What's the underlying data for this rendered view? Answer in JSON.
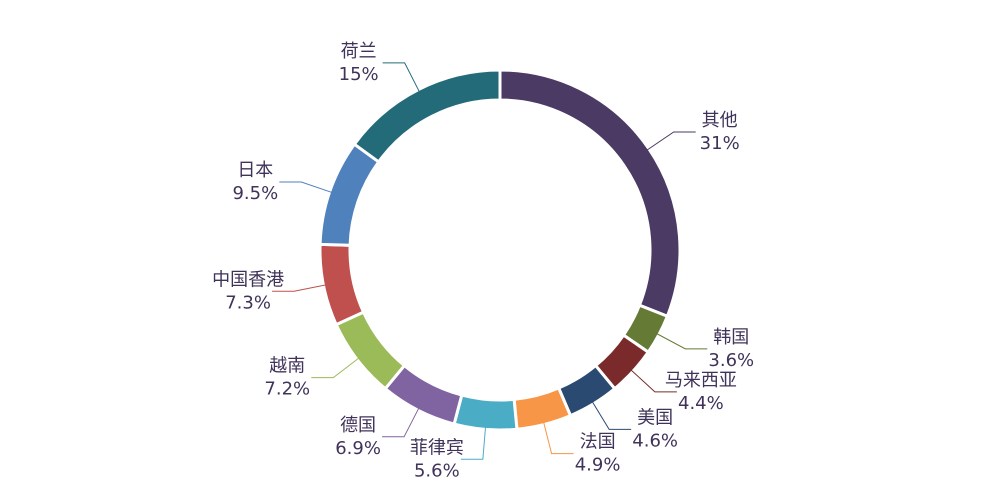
{
  "chart_data": {
    "type": "donut",
    "categories": [
      "其他",
      "韩国",
      "马来西亚",
      "美国",
      "法国",
      "菲律宾",
      "德国",
      "越南",
      "中国香港",
      "日本",
      "荷兰"
    ],
    "values": [
      31,
      3.6,
      4.4,
      4.6,
      4.9,
      5.6,
      6.9,
      7.2,
      7.3,
      9.5,
      15
    ],
    "value_labels": [
      "31%",
      "3.6%",
      "4.4%",
      "4.6%",
      "4.9%",
      "5.6%",
      "6.9%",
      "7.2%",
      "7.3%",
      "9.5%",
      "15%"
    ],
    "colors": [
      "#4b3a63",
      "#647a35",
      "#7a2a2a",
      "#2b4a72",
      "#f79646",
      "#4bacc6",
      "#8064a2",
      "#9bbb59",
      "#c0504d",
      "#4f81bd",
      "#246b7a"
    ]
  }
}
